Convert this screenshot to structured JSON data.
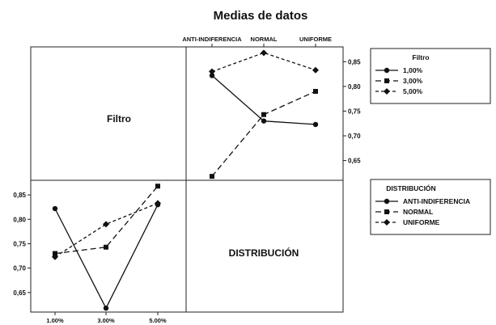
{
  "chart_data": {
    "type": "line",
    "title": "Medias de datos",
    "factors": {
      "filtro": {
        "label": "Filtro",
        "levels": [
          "1,00%",
          "3,00%",
          "5,00%"
        ],
        "axis_ticks": [
          "1.00%",
          "3.00%",
          "5.00%"
        ]
      },
      "distribucion": {
        "label": "DISTRIBUCIÓN",
        "levels": [
          "ANTI-INDIFERENCIA",
          "NORMAL",
          "UNIFORME"
        ],
        "axis_ticks": [
          "ANTI-INDIFERENCIA",
          "NORMAL",
          "UNIFORME"
        ]
      }
    },
    "ylim": [
      0.61,
      0.88
    ],
    "y_ticks": [
      "0,65",
      "0,70",
      "0,75",
      "0,80",
      "0,85"
    ],
    "y_tick_values": [
      0.65,
      0.7,
      0.75,
      0.8,
      0.85
    ],
    "panels": [
      {
        "position": "top-right",
        "x_factor": "DISTRIBUCIÓN",
        "x": [
          "ANTI-INDIFERENCIA",
          "NORMAL",
          "UNIFORME"
        ],
        "legend_title": "Filtro",
        "series": [
          {
            "name": "1,00%",
            "marker": "circle",
            "dash": "solid",
            "values": [
              0.822,
              0.73,
              0.723
            ]
          },
          {
            "name": "3,00%",
            "marker": "square",
            "dash": "long-dash",
            "values": [
              0.618,
              0.743,
              0.79
            ]
          },
          {
            "name": "5,00%",
            "marker": "diamond",
            "dash": "short-dash",
            "values": [
              0.83,
              0.868,
              0.833
            ]
          }
        ]
      },
      {
        "position": "bottom-left",
        "x_factor": "Filtro",
        "x": [
          "1,00%",
          "3,00%",
          "5,00%"
        ],
        "legend_title": "DISTRIBUCIÓN",
        "series": [
          {
            "name": "ANTI-INDIFERENCIA",
            "marker": "circle",
            "dash": "solid",
            "values": [
              0.822,
              0.618,
              0.83
            ]
          },
          {
            "name": "NORMAL",
            "marker": "square",
            "dash": "long-dash",
            "values": [
              0.73,
              0.743,
              0.868
            ]
          },
          {
            "name": "UNIFORME",
            "marker": "diamond",
            "dash": "short-dash",
            "values": [
              0.723,
              0.79,
              0.833
            ]
          }
        ]
      }
    ],
    "grid": false,
    "legend_placement": "right"
  }
}
